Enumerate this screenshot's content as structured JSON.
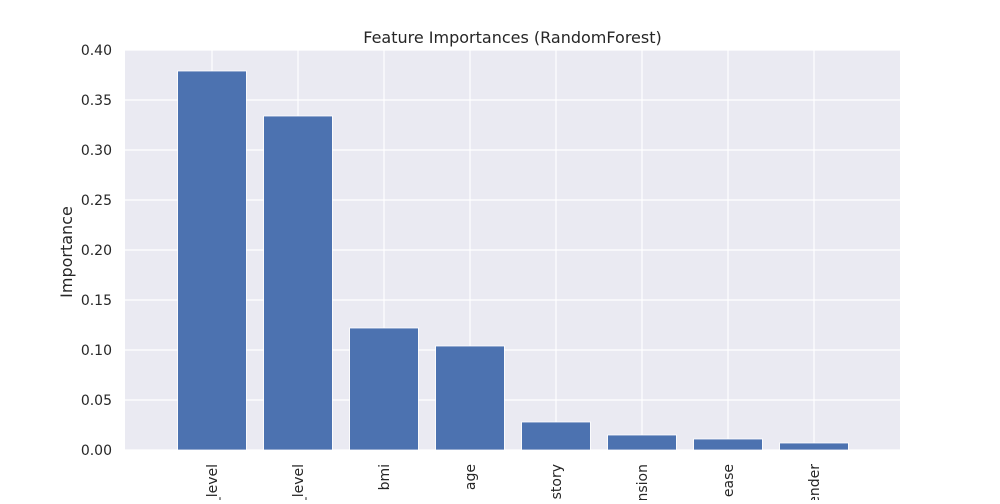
{
  "chart_data": {
    "type": "bar",
    "title": "Feature Importances (RandomForest)",
    "xlabel": "",
    "ylabel": "Importance",
    "categories": [
      "_level",
      "_level",
      "bmi",
      "age",
      "istory",
      "nsion",
      "ease",
      "ender"
    ],
    "values": [
      0.379,
      0.334,
      0.122,
      0.104,
      0.028,
      0.015,
      0.011,
      0.007
    ],
    "ylim": [
      0,
      0.4
    ],
    "yticks": [
      0.0,
      0.05,
      0.1,
      0.15,
      0.2,
      0.25,
      0.3,
      0.35,
      0.4
    ],
    "ytick_labels": [
      "0.00",
      "0.05",
      "0.10",
      "0.15",
      "0.20",
      "0.25",
      "0.30",
      "0.35",
      "0.40"
    ],
    "grid": true,
    "bar_color": "#4c72b0",
    "background_color": "#eaeaf2",
    "grid_color": "#ffffff"
  }
}
